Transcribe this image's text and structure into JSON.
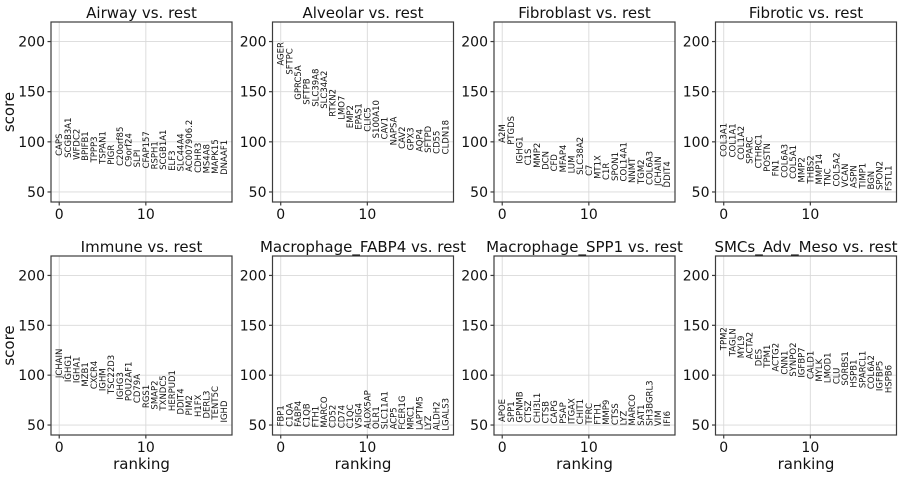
{
  "figure": {
    "ylabel": "score",
    "xlabel": "ranking",
    "xtick_labels": [
      "0",
      "10"
    ],
    "ytick_labels": [
      "50",
      "100",
      "150",
      "200"
    ],
    "colors": {
      "text": "#111111",
      "frame": "#3c3c3c",
      "grid": "#d9d9d9",
      "background": "#ffffff"
    }
  },
  "chart_data": {
    "type": "scatter",
    "subtype": "rank_genes_groups_text_labels",
    "xlabel": "ranking",
    "ylabel": "score",
    "xlim": [
      -0.95,
      19.95
    ],
    "ylim": [
      40,
      219.5
    ],
    "xticks": [
      0,
      10
    ],
    "yticks": [
      50,
      100,
      150,
      200
    ],
    "grid": true,
    "x_is_rank_0_to_19": true,
    "panels": [
      {
        "title": "Airway vs. rest",
        "genes": [
          "CAPS",
          "SCGB3A1",
          "WFDC2",
          "BPIFB1",
          "TPPP3",
          "TSPAN1",
          "PIGR",
          "C20orf85",
          "C9orf24",
          "SLPI",
          "CFAP157",
          "RSPH1",
          "SCGB1A1",
          "ELF3",
          "SLC44A4",
          "AC007906.2",
          "CDHR3",
          "MS4A8",
          "MAPK15",
          "DNAAF1"
        ],
        "scores": [
          86,
          84,
          82,
          81,
          79.5,
          78,
          77,
          76,
          75,
          74.5,
          73.5,
          72.5,
          72,
          71,
          70.5,
          70,
          69,
          68.5,
          68,
          67
        ]
      },
      {
        "title": "Alveolar vs. rest",
        "genes": [
          "AGER",
          "SFTPC",
          "GPRC5A",
          "SFTPB",
          "SLC39A8",
          "SLC34A2",
          "RTKN2",
          "LMO7",
          "EMP2",
          "EPAS1",
          "CLIC5",
          "S100A10",
          "CAV1",
          "NAPSA",
          "CAV2",
          "GPX3",
          "AQP4",
          "SFTPD",
          "CD55",
          "CLDN18"
        ],
        "scores": [
          176,
          167,
          142,
          137,
          135,
          133,
          125,
          122,
          113.5,
          112,
          110,
          103.5,
          102.5,
          96.5,
          93,
          91.5,
          90,
          89,
          88,
          87.5
        ]
      },
      {
        "title": "Fibroblast vs. rest",
        "genes": [
          "A2M",
          "PTGDS",
          "IGHG1",
          "C1S",
          "MMP2",
          "DCN",
          "CFD",
          "MFAP4",
          "LUM",
          "SLC38A2",
          "C7",
          "MT1X",
          "C1R",
          "SPON1",
          "COL14A1",
          "NNMT",
          "TGM2",
          "COL6A3",
          "JCHAIN",
          "DDIT4"
        ],
        "scores": [
          99,
          97,
          78,
          76.5,
          74,
          72,
          70.5,
          69.5,
          68.5,
          67,
          66,
          63,
          62,
          61,
          60.5,
          59,
          58,
          57,
          56,
          54.5
        ]
      },
      {
        "title": "Fibrotic vs. rest",
        "genes": [
          "COL3A1",
          "COL1A1",
          "COL1A2",
          "SPARC",
          "CTHRC1",
          "POSTN",
          "FN1",
          "COL6A3",
          "COL5A1",
          "MMP2",
          "THBS2",
          "MMP14",
          "TNC",
          "COL5A2",
          "VCAN",
          "ASPN",
          "TIMP1",
          "BGN",
          "SPON2",
          "FSTL1"
        ],
        "scores": [
          85,
          84.5,
          82,
          78,
          73.5,
          70,
          65.5,
          64,
          63,
          59.5,
          58.5,
          57.5,
          56,
          55.5,
          54.5,
          54,
          53.5,
          52.5,
          52,
          51
        ]
      },
      {
        "title": "Immune vs. rest",
        "genes": [
          "JCHAIN",
          "IGHG1",
          "IGHA1",
          "MZB1",
          "CXCR4",
          "IGHM",
          "TSC22D3",
          "IGHG3",
          "POU2AF1",
          "CD79A",
          "RGS1",
          "SMAP2",
          "TXNDC5",
          "HERPUD1",
          "DDIT4",
          "PIM2",
          "H1FX",
          "DERL3",
          "TENT5C",
          "IGHD"
        ],
        "scores": [
          97,
          93,
          92,
          88.5,
          86,
          84,
          81,
          75.5,
          74,
          72,
          67,
          65.5,
          64.5,
          64,
          60.5,
          59.5,
          58,
          56.5,
          55.5,
          52.5
        ]
      },
      {
        "title": "Macrophage_FABP4 vs. rest",
        "genes": [
          "FBP1",
          "C1QA",
          "FABP4",
          "C1QB",
          "FTH1",
          "MARCO",
          "CD52",
          "CD74",
          "C1QC",
          "VSIG4",
          "ALOX5AP",
          "OLR1",
          "SLC11A1",
          "ACP5",
          "FCER1G",
          "MRC1",
          "LAPTM5",
          "LYZ",
          "ALDH2",
          "LGALS3"
        ],
        "scores": [
          48.5,
          48.2,
          48,
          47.8,
          47.5,
          47.3,
          47,
          46.8,
          46.6,
          46.4,
          46.2,
          46,
          45.8,
          45.6,
          45.4,
          45.2,
          45,
          44.8,
          44.6,
          44.4
        ]
      },
      {
        "title": "Macrophage_SPP1 vs. rest",
        "genes": [
          "APOE",
          "SPP1",
          "GPNMB",
          "CTSZ",
          "CHI3L1",
          "CTSB",
          "CAPG",
          "PSAP",
          "ITGAX",
          "CHIT1",
          "TFRC",
          "FTH1",
          "MMP9",
          "CTSS",
          "LYZ",
          "MARCO",
          "SAT1",
          "SH3BGRL3",
          "VIM",
          "IFI6"
        ],
        "scores": [
          53,
          52.7,
          52.4,
          52.1,
          51.9,
          51.6,
          51.4,
          51.1,
          50.9,
          50.7,
          50.5,
          50.3,
          50.1,
          49.9,
          49.7,
          49.5,
          49.3,
          49.1,
          48.9,
          48.7
        ]
      },
      {
        "title": "SMCs_Adv_Meso vs. rest",
        "genes": [
          "TPM2",
          "TAGLN",
          "MYL9",
          "ACTA2",
          "DES",
          "TPM1",
          "ACTG2",
          "CNN1",
          "SYNPO2",
          "IGFBP7",
          "CALD1",
          "MYLK",
          "LMOD1",
          "CLU",
          "SORBS1",
          "HSPB1",
          "SPARCL1",
          "COL6A2",
          "IGFBP5",
          "HSPB6"
        ],
        "scores": [
          125,
          119,
          117,
          116,
          109,
          107.5,
          103.5,
          100.5,
          98.5,
          97.5,
          96,
          93.5,
          92,
          91,
          89.5,
          87.5,
          87,
          86,
          84,
          82
        ]
      }
    ]
  }
}
